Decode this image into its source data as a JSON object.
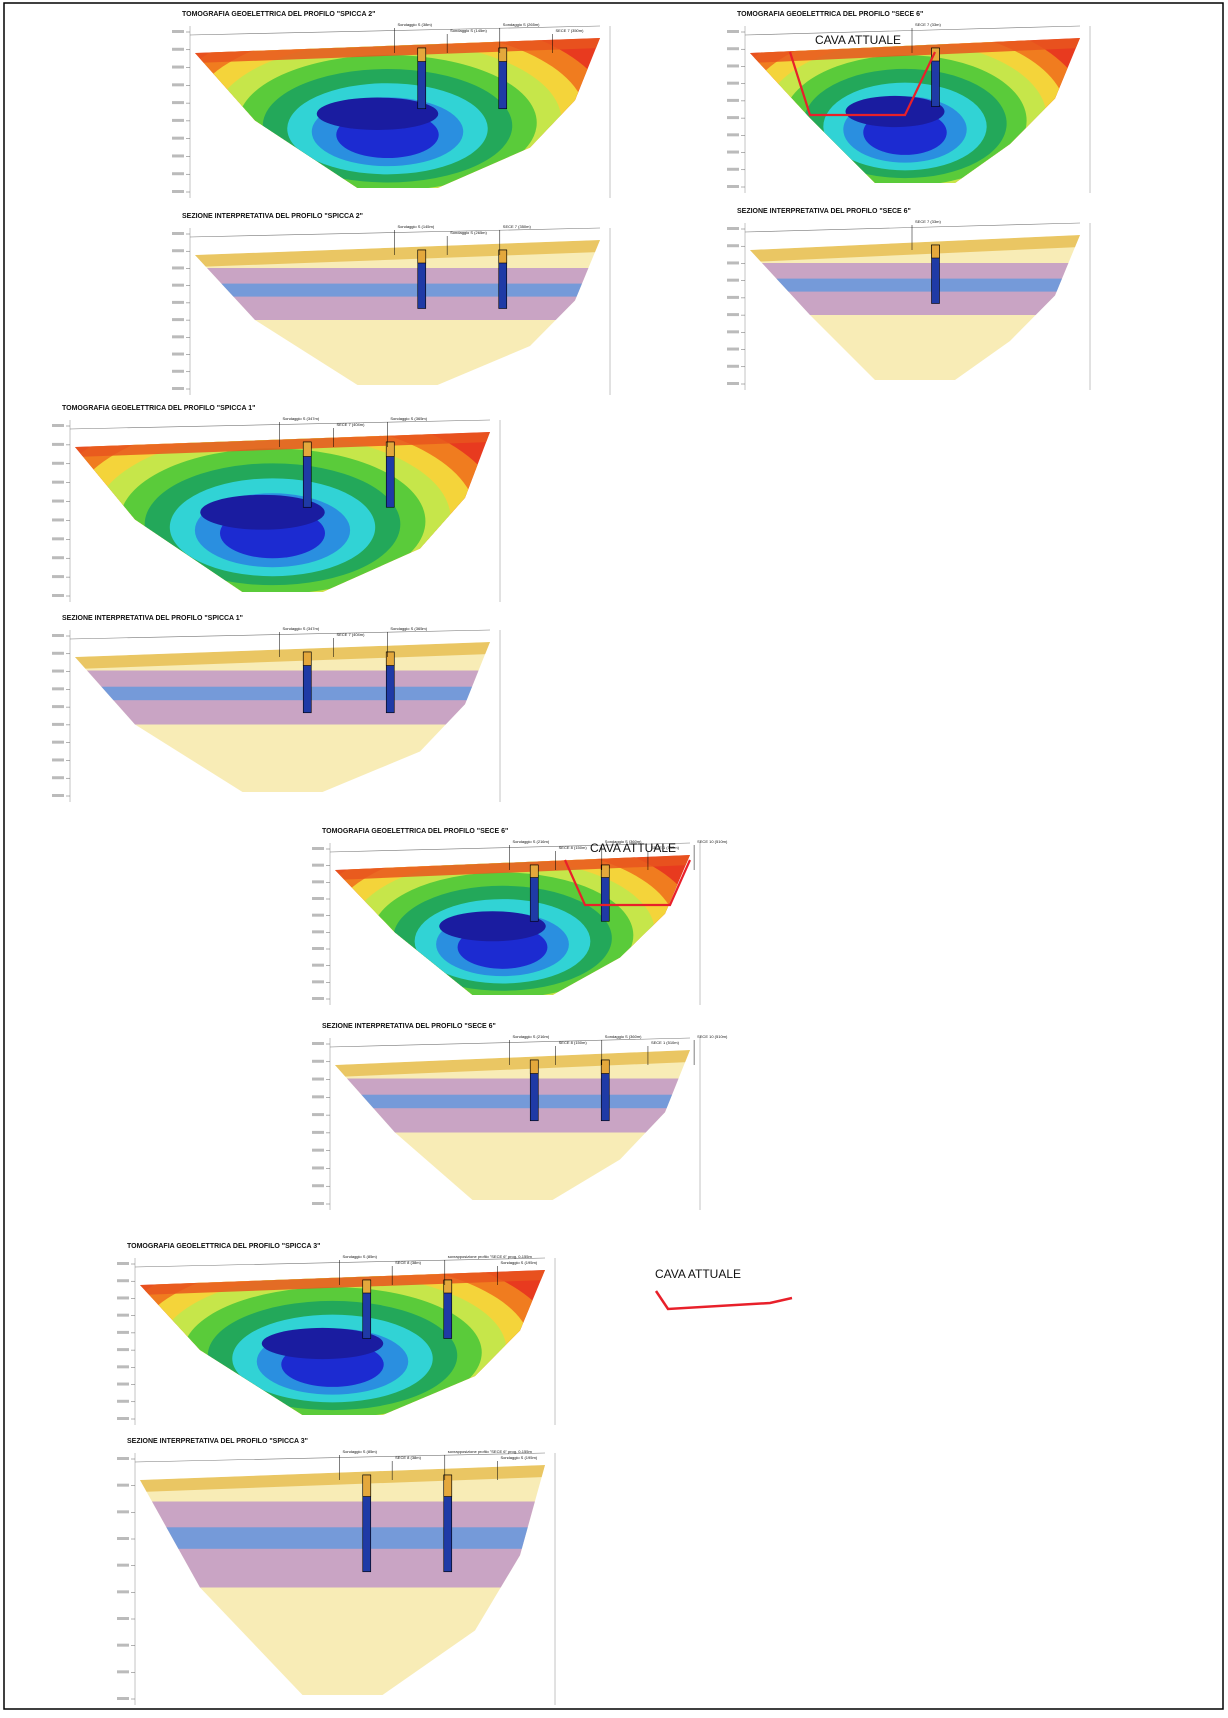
{
  "panels": [
    {
      "id": "tomo-spicca2",
      "kind": "tomo",
      "title": "TOMOGRAFIA GEOELETTRICA DEL PROFILO \"SPICCA 2\"",
      "labels": [
        "Sondaggio S (38m)",
        "Sondaggio S (145m)",
        "Sondaggio S (265m)",
        "SECE 7 (350m)"
      ]
    },
    {
      "id": "interp-spicca2",
      "kind": "interp",
      "title": "SEZIONE INTERPRETATIVA DEL PROFILO \"SPICCA 2\"",
      "labels": [
        "Sondaggio S (145m)",
        "Sondaggio S (265m)",
        "SECE 7 (350m)"
      ]
    },
    {
      "id": "tomo-sece6-top",
      "kind": "tomo",
      "title": "TOMOGRAFIA GEOELETTRICA DEL PROFILO \"SECE 6\"",
      "labels": [
        "SECE 7 (33m)"
      ],
      "cava": "CAVA ATTUALE"
    },
    {
      "id": "interp-sece6-top",
      "kind": "interp",
      "title": "SEZIONE INTERPRETATIVA DEL PROFILO \"SECE 6\"",
      "labels": [
        "SECE 7 (33m)"
      ]
    },
    {
      "id": "tomo-spicca1",
      "kind": "tomo",
      "title": "TOMOGRAFIA GEOELETTRICA DEL PROFILO \"SPICCA 1\"",
      "labels": [
        "Sondaggio S (347m)",
        "SECE 7 (404m)",
        "Sondaggio S (365m)"
      ]
    },
    {
      "id": "interp-spicca1",
      "kind": "interp",
      "title": "SEZIONE INTERPRETATIVA DEL PROFILO \"SPICCA 1\"",
      "labels": [
        "Sondaggio S (347m)",
        "SECE 7 (404m)",
        "Sondaggio S (365m)"
      ]
    },
    {
      "id": "tomo-sece6-mid",
      "kind": "tomo",
      "title": "TOMOGRAFIA GEOELETTRICA DEL PROFILO \"SECE 6\"",
      "labels": [
        "Sondaggio S (216m)",
        "SECE 8 (150m)",
        "Sondaggio S (360m)",
        "SECE 1 (510m)",
        "SECE 10 (510m)"
      ],
      "cava": "CAVA ATTUALE"
    },
    {
      "id": "interp-sece6-mid",
      "kind": "interp",
      "title": "SEZIONE INTERPRETATIVA DEL PROFILO \"SECE 6\"",
      "labels": [
        "Sondaggio S (216m)",
        "SECE 8 (150m)",
        "Sondaggio S (360m)",
        "SECE 1 (510m)",
        "SECE 10 (510m)"
      ]
    },
    {
      "id": "tomo-spicca3",
      "kind": "tomo",
      "title": "TOMOGRAFIA GEOELETTRICA DEL PROFILO \"SPICCA 3\"",
      "labels": [
        "Sondaggio S (85m)",
        "SECE 8 (38m)",
        "sovrapposizione profilo \"SECE 6\" prog. 0-155m",
        "Sondaggio S (195m)"
      ]
    },
    {
      "id": "interp-spicca3",
      "kind": "interp",
      "title": "SEZIONE INTERPRETATIVA DEL PROFILO \"SPICCA 3\"",
      "labels": [
        "Sondaggio S (85m)",
        "SECE 8 (38m)",
        "sovrapposizione profilo \"SECE 6\" prog. 0-155m",
        "Sondaggio S (195m)"
      ]
    }
  ],
  "legend": {
    "cava": "CAVA ATTUALE"
  },
  "colors": {
    "frame": "#000000",
    "cava_outline": "#e8202a",
    "borehole": "#1f3aa6",
    "borehole_top": "#e4a83c",
    "bands_high": [
      "#f07c1f",
      "#e83a1f",
      "#f4d43a",
      "#c6e64a",
      "#5acb3a",
      "#23a85a",
      "#31d3d5",
      "#2a8fe0",
      "#1c2bd1",
      "#1a1ca0"
    ],
    "strata": {
      "top": "#e8c25a",
      "clay": "#a36ad0",
      "aquifer": "#3e94e8",
      "gravel": "#f2dc7a"
    }
  }
}
